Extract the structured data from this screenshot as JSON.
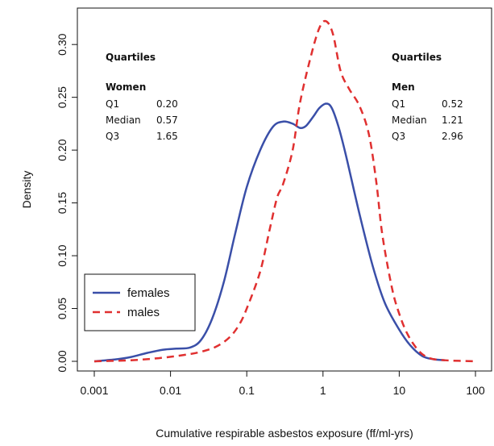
{
  "chart_data": {
    "type": "line",
    "xlabel": "Cumulative respirable asbestos exposure (ff/ml-yrs)",
    "ylabel": "Density",
    "x_scale": "log",
    "xlim": [
      0.001,
      100
    ],
    "ylim": [
      0,
      0.33
    ],
    "x_ticks": [
      0.001,
      0.01,
      0.1,
      1,
      10,
      100
    ],
    "x_tick_labels": [
      "0.001",
      "0.01",
      "0.1",
      "1",
      "10",
      "100"
    ],
    "y_ticks": [
      0,
      0.05,
      0.1,
      0.15,
      0.2,
      0.25,
      0.3
    ],
    "y_tick_labels": [
      "0.00",
      "0.05",
      "0.10",
      "0.15",
      "0.20",
      "0.25",
      "0.30"
    ],
    "grid": false,
    "legend": {
      "position": "bottom-left",
      "entries": [
        "females",
        "males"
      ]
    },
    "series": [
      {
        "name": "females",
        "color": "#3a4fa8",
        "style": "solid",
        "points": [
          [
            0.001,
            0.0
          ],
          [
            0.002,
            0.002
          ],
          [
            0.003,
            0.004
          ],
          [
            0.005,
            0.008
          ],
          [
            0.008,
            0.011
          ],
          [
            0.012,
            0.012
          ],
          [
            0.018,
            0.013
          ],
          [
            0.025,
            0.02
          ],
          [
            0.035,
            0.04
          ],
          [
            0.05,
            0.075
          ],
          [
            0.07,
            0.12
          ],
          [
            0.1,
            0.165
          ],
          [
            0.15,
            0.2
          ],
          [
            0.22,
            0.222
          ],
          [
            0.3,
            0.227
          ],
          [
            0.4,
            0.225
          ],
          [
            0.5,
            0.221
          ],
          [
            0.6,
            0.223
          ],
          [
            0.75,
            0.232
          ],
          [
            0.9,
            0.24
          ],
          [
            1.1,
            0.244
          ],
          [
            1.3,
            0.24
          ],
          [
            1.6,
            0.222
          ],
          [
            2.0,
            0.195
          ],
          [
            3.0,
            0.14
          ],
          [
            4.5,
            0.09
          ],
          [
            6.5,
            0.055
          ],
          [
            10,
            0.03
          ],
          [
            14,
            0.015
          ],
          [
            20,
            0.005
          ],
          [
            28,
            0.002
          ],
          [
            40,
            0.001
          ]
        ]
      },
      {
        "name": "males",
        "color": "#e03030",
        "style": "dashed",
        "points": [
          [
            0.001,
            0.0
          ],
          [
            0.003,
            0.001
          ],
          [
            0.007,
            0.003
          ],
          [
            0.015,
            0.006
          ],
          [
            0.025,
            0.009
          ],
          [
            0.04,
            0.014
          ],
          [
            0.06,
            0.023
          ],
          [
            0.08,
            0.035
          ],
          [
            0.1,
            0.05
          ],
          [
            0.15,
            0.085
          ],
          [
            0.2,
            0.125
          ],
          [
            0.25,
            0.155
          ],
          [
            0.3,
            0.168
          ],
          [
            0.4,
            0.2
          ],
          [
            0.5,
            0.245
          ],
          [
            0.7,
            0.29
          ],
          [
            0.9,
            0.316
          ],
          [
            1.1,
            0.322
          ],
          [
            1.35,
            0.31
          ],
          [
            1.7,
            0.275
          ],
          [
            2.2,
            0.258
          ],
          [
            3.0,
            0.242
          ],
          [
            4.0,
            0.215
          ],
          [
            5.0,
            0.17
          ],
          [
            6.0,
            0.12
          ],
          [
            8.0,
            0.07
          ],
          [
            10,
            0.045
          ],
          [
            13,
            0.025
          ],
          [
            18,
            0.01
          ],
          [
            25,
            0.003
          ],
          [
            40,
            0.001
          ],
          [
            100,
            0.0
          ]
        ]
      }
    ],
    "annotations": {
      "women": {
        "heading": "Quartiles",
        "group": "Women",
        "rows": [
          {
            "label": "Q1",
            "value": "0.20"
          },
          {
            "label": "Median",
            "value": "0.57"
          },
          {
            "label": "Q3",
            "value": "1.65"
          }
        ]
      },
      "men": {
        "heading": "Quartiles",
        "group": "Men",
        "rows": [
          {
            "label": "Q1",
            "value": "0.52"
          },
          {
            "label": "Median",
            "value": "1.21"
          },
          {
            "label": "Q3",
            "value": "2.96"
          }
        ]
      }
    }
  }
}
